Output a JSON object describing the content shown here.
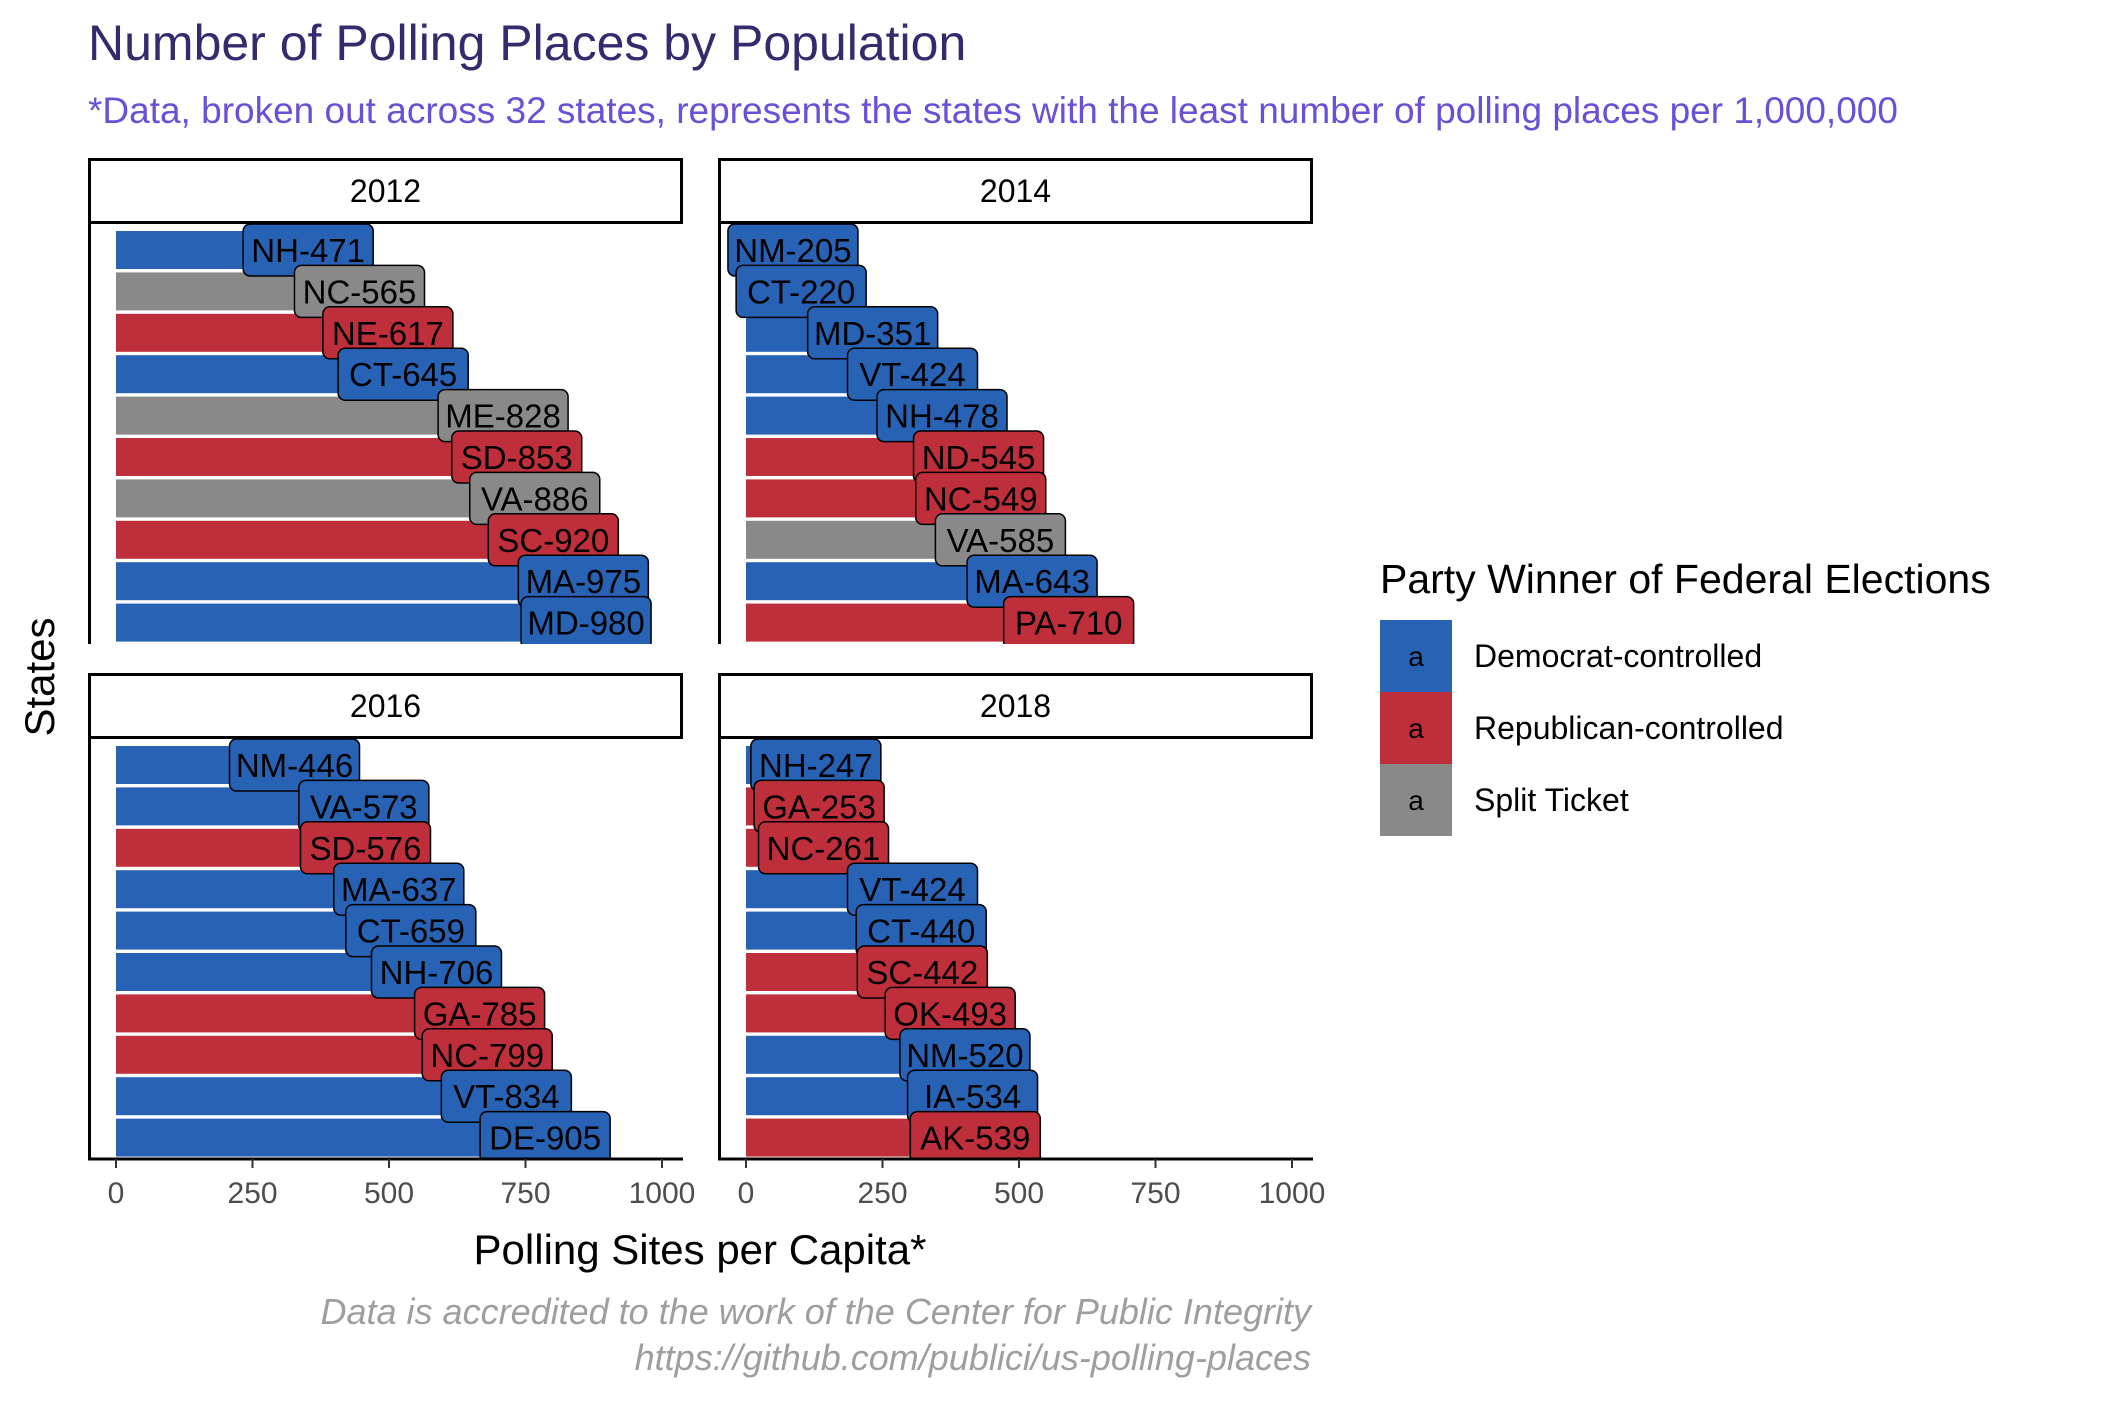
{
  "colors": {
    "Democrat-controlled": "#2862b5",
    "Republican-controlled": "#be2f3b",
    "Split Ticket": "#898989"
  },
  "chart_data": {
    "type": "bar",
    "orientation": "horizontal",
    "title": "Number of Polling Places by Population",
    "subtitle": "*Data, broken out across 32 states, represents the states with the least number of polling places per 1,000,000",
    "xlabel": "Polling Sites per Capita*",
    "ylabel": "States",
    "xlim": [
      0,
      1030
    ],
    "xticks": [
      0,
      250,
      500,
      750,
      1000
    ],
    "legend": {
      "title": "Party Winner of Federal Elections",
      "position": "right",
      "key_glyph": "a",
      "entries": [
        "Democrat-controlled",
        "Republican-controlled",
        "Split Ticket"
      ]
    },
    "caption": [
      "Data is accredited to the work of the Center for Public Integrity",
      "https://github.com/publici/us-polling-places"
    ],
    "panels": [
      {
        "name": "2012",
        "bars": [
          {
            "state": "NH",
            "value": 471,
            "party": "Democrat-controlled"
          },
          {
            "state": "NC",
            "value": 565,
            "party": "Split Ticket"
          },
          {
            "state": "NE",
            "value": 617,
            "party": "Republican-controlled"
          },
          {
            "state": "CT",
            "value": 645,
            "party": "Democrat-controlled"
          },
          {
            "state": "ME",
            "value": 828,
            "party": "Split Ticket"
          },
          {
            "state": "SD",
            "value": 853,
            "party": "Republican-controlled"
          },
          {
            "state": "VA",
            "value": 886,
            "party": "Split Ticket"
          },
          {
            "state": "SC",
            "value": 920,
            "party": "Republican-controlled"
          },
          {
            "state": "MA",
            "value": 975,
            "party": "Democrat-controlled"
          },
          {
            "state": "MD",
            "value": 980,
            "party": "Democrat-controlled"
          }
        ]
      },
      {
        "name": "2014",
        "bars": [
          {
            "state": "NM",
            "value": 205,
            "party": "Democrat-controlled"
          },
          {
            "state": "CT",
            "value": 220,
            "party": "Democrat-controlled"
          },
          {
            "state": "MD",
            "value": 351,
            "party": "Democrat-controlled"
          },
          {
            "state": "VT",
            "value": 424,
            "party": "Democrat-controlled"
          },
          {
            "state": "NH",
            "value": 478,
            "party": "Democrat-controlled"
          },
          {
            "state": "ND",
            "value": 545,
            "party": "Republican-controlled"
          },
          {
            "state": "NC",
            "value": 549,
            "party": "Republican-controlled"
          },
          {
            "state": "VA",
            "value": 585,
            "party": "Split Ticket"
          },
          {
            "state": "MA",
            "value": 643,
            "party": "Democrat-controlled"
          },
          {
            "state": "PA",
            "value": 710,
            "party": "Republican-controlled"
          }
        ]
      },
      {
        "name": "2016",
        "bars": [
          {
            "state": "NM",
            "value": 446,
            "party": "Democrat-controlled"
          },
          {
            "state": "VA",
            "value": 573,
            "party": "Democrat-controlled"
          },
          {
            "state": "SD",
            "value": 576,
            "party": "Republican-controlled"
          },
          {
            "state": "MA",
            "value": 637,
            "party": "Democrat-controlled"
          },
          {
            "state": "CT",
            "value": 659,
            "party": "Democrat-controlled"
          },
          {
            "state": "NH",
            "value": 706,
            "party": "Democrat-controlled"
          },
          {
            "state": "GA",
            "value": 785,
            "party": "Republican-controlled"
          },
          {
            "state": "NC",
            "value": 799,
            "party": "Republican-controlled"
          },
          {
            "state": "VT",
            "value": 834,
            "party": "Democrat-controlled"
          },
          {
            "state": "DE",
            "value": 905,
            "party": "Democrat-controlled"
          }
        ]
      },
      {
        "name": "2018",
        "bars": [
          {
            "state": "NH",
            "value": 247,
            "party": "Democrat-controlled"
          },
          {
            "state": "GA",
            "value": 253,
            "party": "Republican-controlled"
          },
          {
            "state": "NC",
            "value": 261,
            "party": "Republican-controlled"
          },
          {
            "state": "VT",
            "value": 424,
            "party": "Democrat-controlled"
          },
          {
            "state": "CT",
            "value": 440,
            "party": "Democrat-controlled"
          },
          {
            "state": "SC",
            "value": 442,
            "party": "Republican-controlled"
          },
          {
            "state": "OK",
            "value": 493,
            "party": "Republican-controlled"
          },
          {
            "state": "NM",
            "value": 520,
            "party": "Democrat-controlled"
          },
          {
            "state": "IA",
            "value": 534,
            "party": "Democrat-controlled"
          },
          {
            "state": "AK",
            "value": 539,
            "party": "Republican-controlled"
          }
        ]
      }
    ]
  }
}
